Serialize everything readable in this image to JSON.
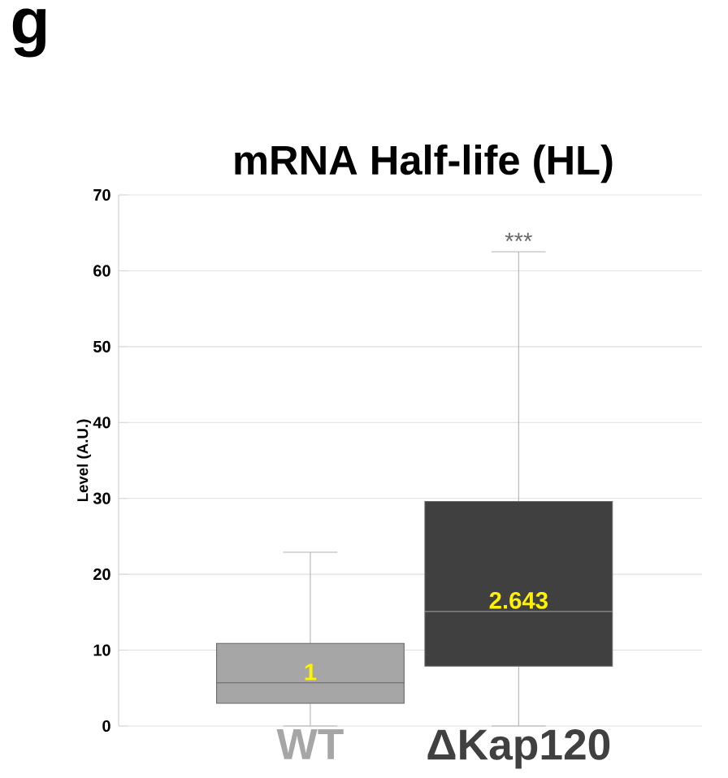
{
  "chart_data": {
    "type": "box",
    "title": "mRNA Half-life (HL)",
    "ylabel": "Level (A.U.)",
    "categories": [
      "WT",
      "ΔKap120"
    ],
    "colors": [
      "#a6a6a6",
      "#404040"
    ],
    "boxes": [
      {
        "low": 0,
        "q1": 3,
        "median": 5.7,
        "q3": 10.9,
        "high": 22.9
      },
      {
        "low": 0,
        "q1": 7.9,
        "median": 15.1,
        "q3": 29.6,
        "high": 62.5
      }
    ],
    "ylim": [
      0,
      70
    ],
    "yticks": [
      0,
      10,
      20,
      30,
      40,
      50,
      60,
      70
    ],
    "grid": "y",
    "annotations": [
      "g",
      "1",
      "2.643",
      "***"
    ]
  }
}
